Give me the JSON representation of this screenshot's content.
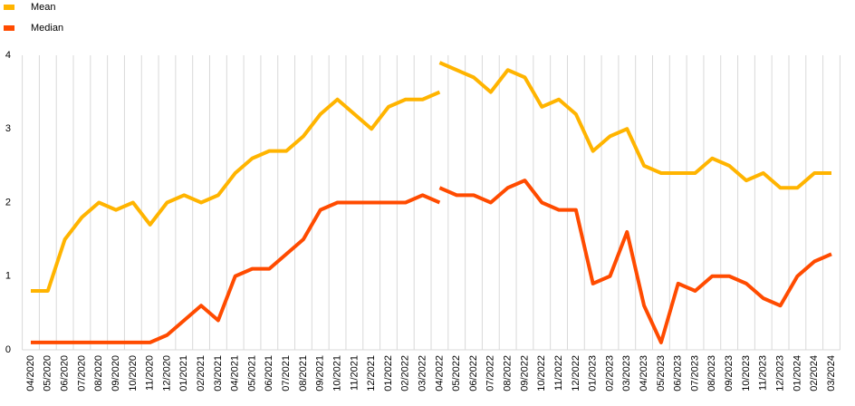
{
  "chart_data": {
    "type": "line",
    "categories": [
      "04/2020",
      "05/2020",
      "06/2020",
      "07/2020",
      "08/2020",
      "09/2020",
      "10/2020",
      "11/2020",
      "12/2020",
      "01/2021",
      "02/2021",
      "03/2021",
      "04/2021",
      "05/2021",
      "06/2021",
      "07/2021",
      "08/2021",
      "09/2021",
      "10/2021",
      "11/2021",
      "12/2021",
      "01/2022",
      "02/2022",
      "03/2022",
      "04/2022",
      "05/2022",
      "06/2022",
      "07/2022",
      "08/2022",
      "09/2022",
      "10/2022",
      "11/2022",
      "12/2022",
      "01/2023",
      "02/2023",
      "03/2023",
      "04/2023",
      "05/2023",
      "06/2023",
      "07/2023",
      "08/2023",
      "09/2023",
      "10/2023",
      "11/2023",
      "12/2023",
      "01/2024",
      "02/2024",
      "03/2024"
    ],
    "series": [
      {
        "name": "Mean",
        "color": "#ffb400",
        "values": [
          0.8,
          0.8,
          1.5,
          1.8,
          2.0,
          1.9,
          2.0,
          1.7,
          2.0,
          2.1,
          2.0,
          2.1,
          2.4,
          2.6,
          2.7,
          2.7,
          2.9,
          3.2,
          3.4,
          3.2,
          3.0,
          3.3,
          3.4,
          3.4,
          3.5,
          null,
          null,
          null,
          null,
          null,
          null,
          null,
          null,
          null,
          null,
          null,
          null,
          null,
          null,
          null,
          null,
          null,
          null,
          null,
          null,
          null,
          null,
          null
        ]
      },
      {
        "name": "Median",
        "color": "#ff4b00",
        "values": [
          0.1,
          0.1,
          0.1,
          0.1,
          0.1,
          0.1,
          0.1,
          0.1,
          0.2,
          0.4,
          0.6,
          0.4,
          1.0,
          1.1,
          1.1,
          1.3,
          1.5,
          1.9,
          2.0,
          2.0,
          2.0,
          2.0,
          2.0,
          2.1,
          2.0,
          null,
          null,
          null,
          null,
          null,
          null,
          null,
          null,
          null,
          null,
          null,
          null,
          null,
          null,
          null,
          null,
          null,
          null,
          null,
          null,
          null,
          null,
          null
        ]
      },
      {
        "color": "#ffb400",
        "values": [
          null,
          null,
          null,
          null,
          null,
          null,
          null,
          null,
          null,
          null,
          null,
          null,
          null,
          null,
          null,
          null,
          null,
          null,
          null,
          null,
          null,
          null,
          null,
          null,
          3.9,
          3.8,
          3.7,
          3.5,
          3.8,
          3.7,
          3.3,
          3.4,
          3.2,
          2.7,
          2.9,
          3.0,
          2.5,
          2.4,
          2.4,
          2.4,
          2.6,
          2.5,
          2.3,
          2.4,
          2.2,
          2.2,
          2.4,
          2.4
        ]
      },
      {
        "color": "#ff4b00",
        "values": [
          null,
          null,
          null,
          null,
          null,
          null,
          null,
          null,
          null,
          null,
          null,
          null,
          null,
          null,
          null,
          null,
          null,
          null,
          null,
          null,
          null,
          null,
          null,
          null,
          2.2,
          2.1,
          2.1,
          2.0,
          2.2,
          2.3,
          2.0,
          1.9,
          1.9,
          0.9,
          1.0,
          1.6,
          0.6,
          0.1,
          0.9,
          0.8,
          1.0,
          1.0,
          0.9,
          0.7,
          0.6,
          1.0,
          1.2,
          1.3
        ]
      }
    ],
    "ylim": [
      0,
      4
    ],
    "yticks": [
      0,
      1,
      2,
      3,
      4
    ],
    "grid": "x"
  }
}
